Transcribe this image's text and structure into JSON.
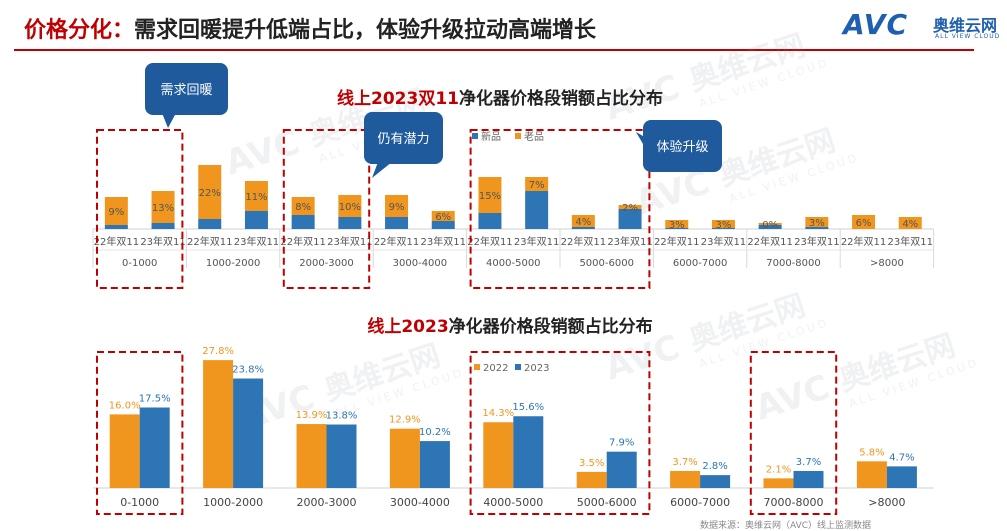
{
  "header": {
    "title_prefix": "价格分化：",
    "title_main": "需求回暖提升低端占比，体验升级拉动高端增长",
    "logo_text": "AVC",
    "logo_cn": "奥维云网",
    "logo_en": "ALL VIEW CLOUD"
  },
  "watermark": {
    "cn": "奥维云网",
    "en": "ALL VIEW CLOUD",
    "logo": "AVC"
  },
  "callouts": {
    "c1": "需求回暖",
    "c2": "仍有潜力",
    "c3": "体验升级"
  },
  "footer": {
    "note": "数据来源：奥维云网（AVC）线上监测数据"
  },
  "colors": {
    "new": "#2E75B6",
    "old": "#F0961E",
    "y2022": "#F0961E",
    "y2023": "#2E75B6",
    "highlight": "#C00000"
  },
  "chart_data": [
    {
      "type": "bar",
      "stacked": true,
      "title_red": "线上2023双11",
      "title_rest": "净化器价格段销额占比分布",
      "legend": [
        "新品",
        "老品"
      ],
      "legend_position": "top-center",
      "groups": [
        "0-1000",
        "1000-2000",
        "2000-3000",
        "3000-4000",
        "4000-5000",
        "5000-6000",
        "6000-7000",
        "7000-8000",
        ">8000"
      ],
      "sub_categories": [
        "22年双11",
        "23年双11"
      ],
      "labels": [
        "9%",
        "13%",
        "22%",
        "11%",
        "8%",
        "10%",
        "9%",
        "6%",
        "15%",
        "7%",
        "4%",
        "2%",
        "3%",
        "3%",
        "0%",
        "3%",
        "6%",
        "4%"
      ],
      "new_values": [
        2,
        3,
        5,
        9,
        7,
        6,
        6,
        4,
        8,
        19,
        1,
        10,
        0.5,
        0.5,
        2,
        1,
        0,
        0
      ],
      "old_values": [
        14,
        16,
        27,
        15,
        9,
        11,
        11,
        5,
        18,
        7,
        6,
        2,
        4,
        4,
        1,
        5,
        7,
        6
      ],
      "highlight_groups": [
        [
          0,
          0
        ],
        [
          2,
          2
        ],
        [
          4,
          5
        ]
      ]
    },
    {
      "type": "bar",
      "title_red": "线上2023",
      "title_rest": "净化器价格段销额占比分布",
      "legend": [
        "2022",
        "2023"
      ],
      "legend_position": "top-center",
      "categories": [
        "0-1000",
        "1000-2000",
        "2000-3000",
        "3000-4000",
        "4000-5000",
        "5000-6000",
        "6000-7000",
        "7000-8000",
        ">8000"
      ],
      "series": [
        {
          "name": "2022",
          "values": [
            16.0,
            27.8,
            13.9,
            12.9,
            14.3,
            3.5,
            3.7,
            2.1,
            5.8
          ],
          "labels": [
            "16.0%",
            "27.8%",
            "13.9%",
            "12.9%",
            "14.3%",
            "3.5%",
            "3.7%",
            "2.1%",
            "5.8%"
          ]
        },
        {
          "name": "2023",
          "values": [
            17.5,
            23.8,
            13.8,
            10.2,
            15.6,
            7.9,
            2.8,
            3.7,
            4.7
          ],
          "labels": [
            "17.5%",
            "23.8%",
            "13.8%",
            "10.2%",
            "15.6%",
            "7.9%",
            "2.8%",
            "3.7%",
            "4.7%"
          ]
        }
      ],
      "highlight_groups": [
        [
          0,
          0
        ],
        [
          4,
          5
        ],
        [
          7,
          7
        ]
      ]
    }
  ]
}
